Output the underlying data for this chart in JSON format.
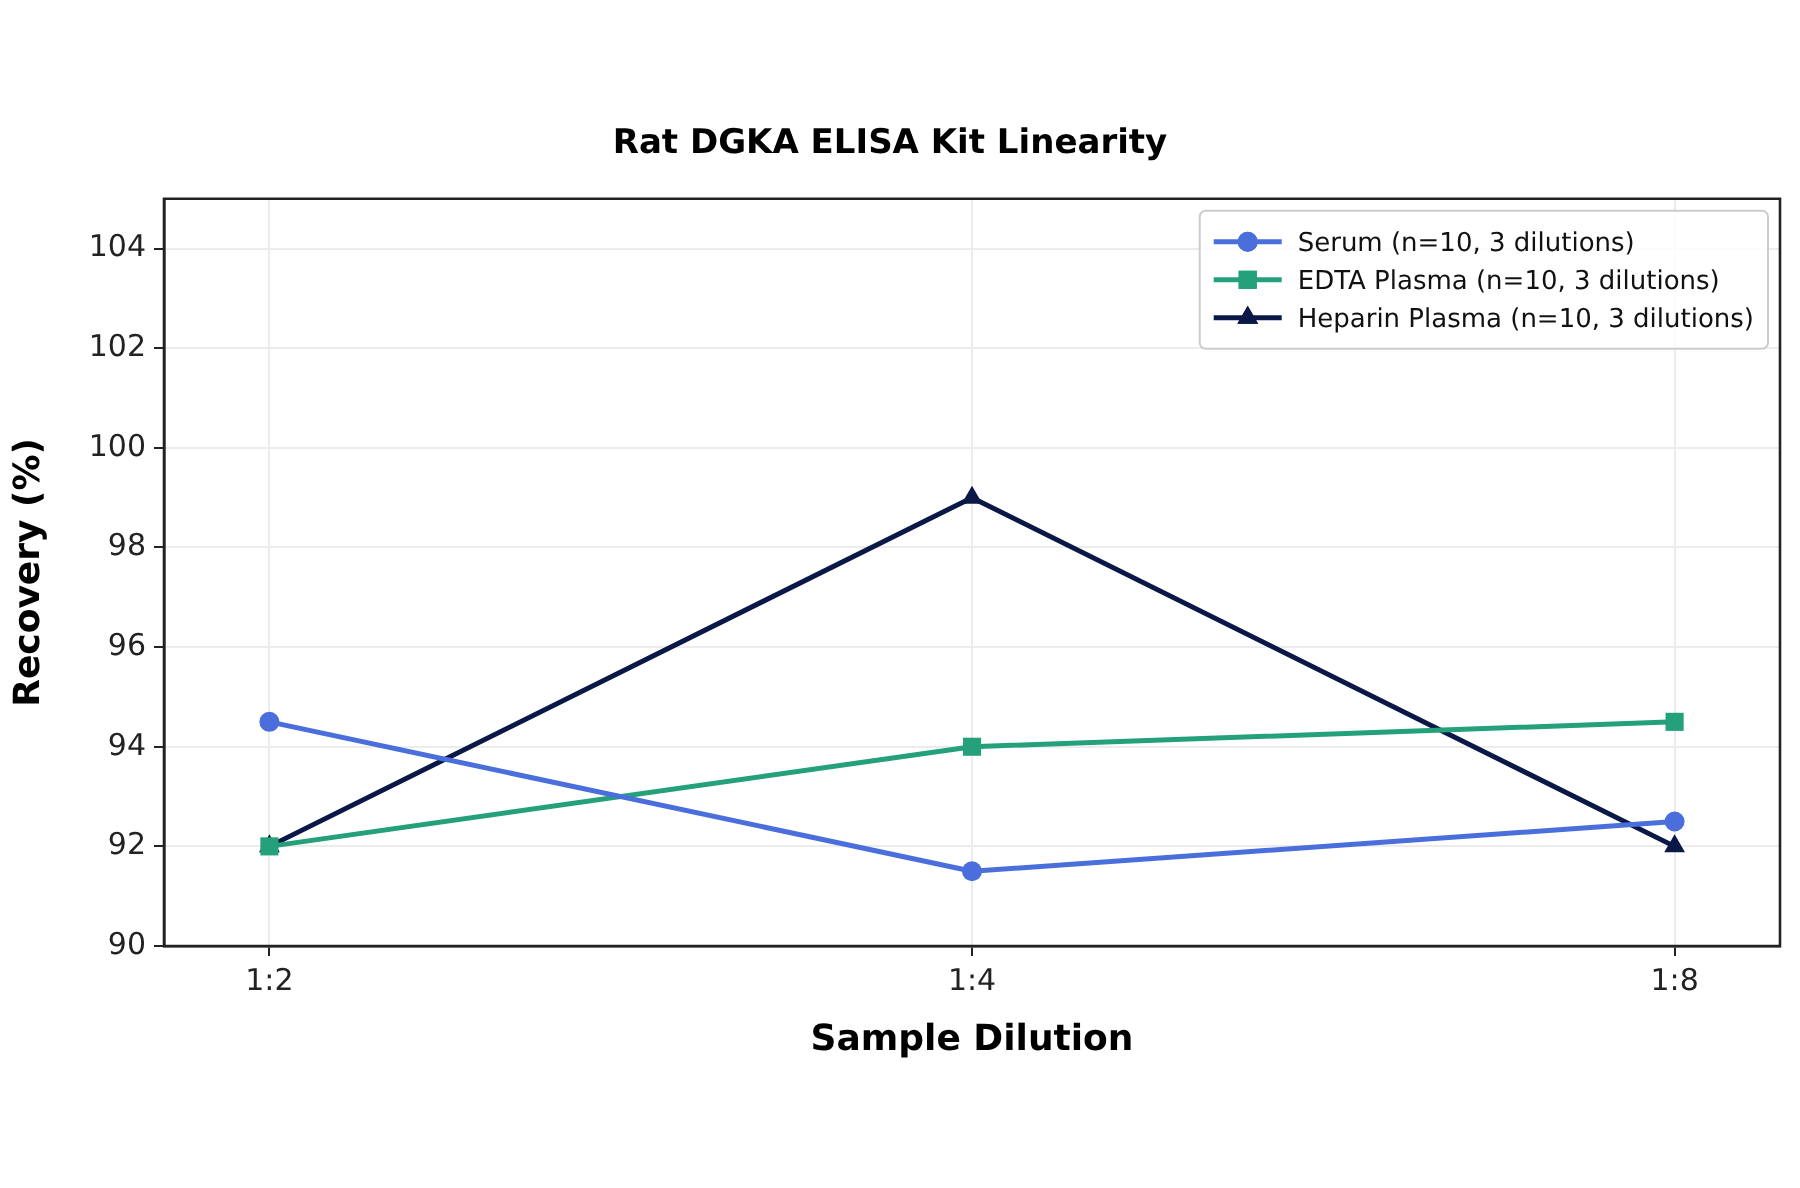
{
  "chart_data": {
    "type": "line",
    "title": "Rat DGKA ELISA Kit Linearity",
    "xlabel": "Sample Dilution",
    "ylabel": "Recovery (%)",
    "categories": [
      "1:2",
      "1:4",
      "1:8"
    ],
    "series": [
      {
        "name": "Serum (n=10, 3 dilutions)",
        "color": "#4a6fdc",
        "marker": "circle",
        "values": [
          94.5,
          91.5,
          92.5
        ]
      },
      {
        "name": "EDTA Plasma (n=10, 3 dilutions)",
        "color": "#24a07a",
        "marker": "square",
        "values": [
          92,
          94,
          94.5
        ]
      },
      {
        "name": "Heparin Plasma (n=10, 3 dilutions)",
        "color": "#0a1847",
        "marker": "triangle",
        "values": [
          92,
          99,
          92
        ]
      }
    ],
    "ylim": [
      90,
      105
    ],
    "yticks": [
      90,
      92,
      94,
      96,
      98,
      100,
      102,
      104
    ],
    "grid": true,
    "legend": "top right",
    "line_style": "solid"
  }
}
